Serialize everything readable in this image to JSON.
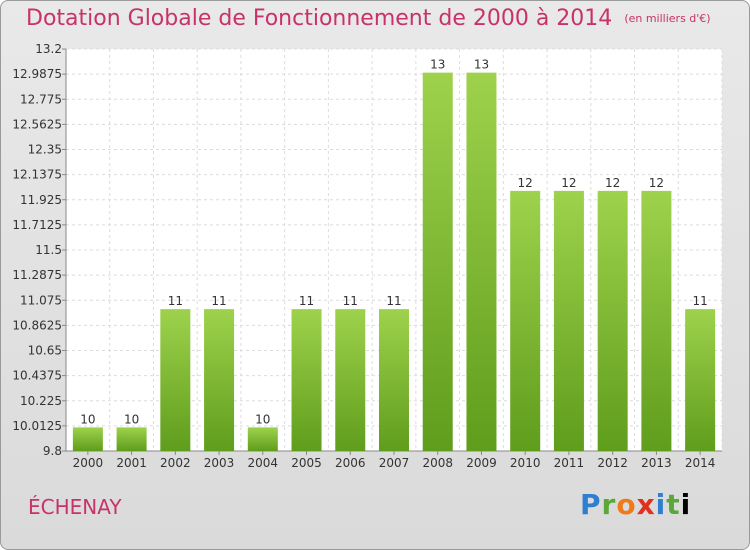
{
  "header": {
    "title": "Dotation Globale de Fonctionnement de 2000 à 2014",
    "subtitle": "(en milliers d'€)"
  },
  "footer": {
    "commune": "ÉCHENAY",
    "logo_letters": [
      "P",
      "r",
      "o",
      "x",
      "i",
      "t",
      "i"
    ]
  },
  "chart_data": {
    "type": "bar",
    "title": "Dotation Globale de Fonctionnement de 2000 à 2014",
    "subtitle": "(en milliers d'€)",
    "categories": [
      "2000",
      "2001",
      "2002",
      "2003",
      "2004",
      "2005",
      "2006",
      "2007",
      "2008",
      "2009",
      "2010",
      "2011",
      "2012",
      "2013",
      "2014"
    ],
    "values": [
      10,
      10,
      11,
      11,
      10,
      11,
      11,
      11,
      13,
      13,
      12,
      12,
      12,
      12,
      11
    ],
    "bar_heights": [
      10.0,
      10.0,
      11.0,
      11.0,
      10.0,
      11.0,
      11.0,
      11.0,
      13.0,
      13.0,
      12.0,
      12.0,
      12.0,
      12.0,
      11.0
    ],
    "yticks": [
      "9.8",
      "10.0125",
      "10.225",
      "10.4375",
      "10.65",
      "10.8625",
      "11.075",
      "11.2875",
      "11.5",
      "11.7125",
      "11.925",
      "12.1375",
      "12.35",
      "12.5625",
      "12.775",
      "12.9875",
      "13.2"
    ],
    "ylim": [
      9.8,
      13.2
    ],
    "xlabel": "",
    "ylabel": "",
    "grid": true,
    "bar_color": "#7fc03a"
  }
}
